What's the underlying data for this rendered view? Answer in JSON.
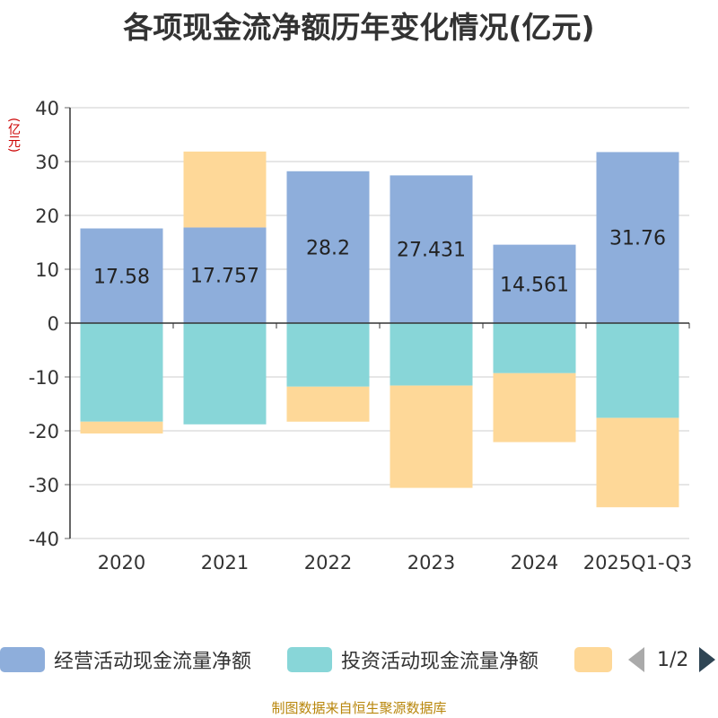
{
  "title": "各项现金流净额历年变化情况(亿元)",
  "unit_label": "(亿元)",
  "chart_data": {
    "type": "bar",
    "stacked": true,
    "title": "各项现金流净额历年变化情况(亿元)",
    "ylabel": "(亿元)",
    "ylim": [
      -40,
      40
    ],
    "yticks": [
      40,
      30,
      20,
      10,
      0,
      -10,
      -20,
      -30,
      -40
    ],
    "grid": true,
    "categories": [
      "2020",
      "2021",
      "2022",
      "2023",
      "2024",
      "2025Q1-Q3"
    ],
    "series": [
      {
        "name": "经营活动现金流量净额",
        "color": "#8eaedb",
        "values": [
          17.58,
          17.757,
          28.2,
          27.431,
          14.561,
          31.76
        ],
        "labels": [
          "17.58",
          "17.757",
          "28.2",
          "27.431",
          "14.561",
          "31.76"
        ]
      },
      {
        "name": "投资活动现金流量净额",
        "color": "#88d6d8",
        "values": [
          -18.3,
          -18.8,
          -11.8,
          -11.6,
          -9.3,
          -17.6
        ]
      },
      {
        "name": "",
        "color": "#fed898",
        "values": [
          -2.2,
          14.1,
          -6.5,
          -19.0,
          -12.8,
          -16.6
        ]
      }
    ]
  },
  "legend": {
    "items": [
      {
        "label": "经营活动现金流量净额",
        "color": "#8eaedb"
      },
      {
        "label": "投资活动现金流量净额",
        "color": "#88d6d8"
      },
      {
        "label": "",
        "color": "#fed898"
      }
    ],
    "page": "1/2"
  },
  "footer": "制图数据来自恒生聚源数据库"
}
